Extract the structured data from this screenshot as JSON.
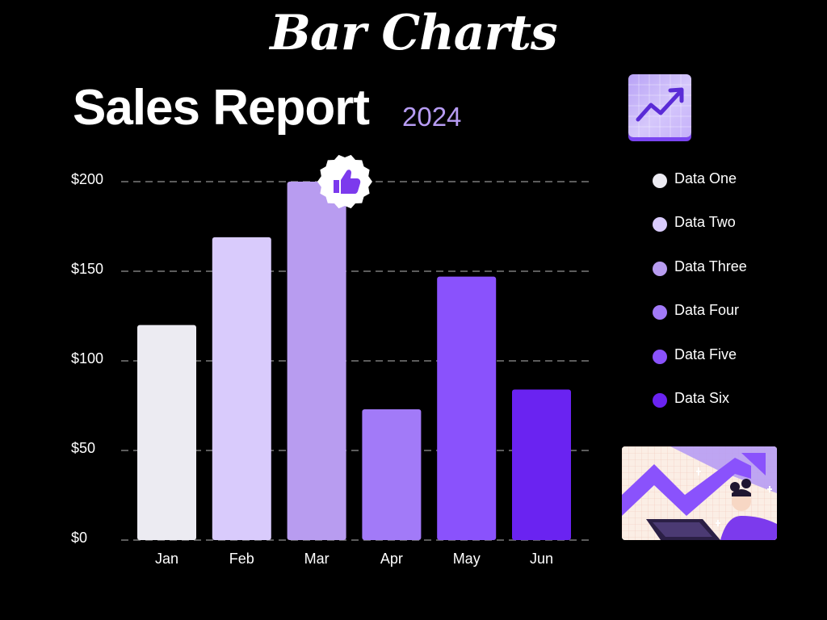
{
  "page": {
    "banner": "Bar Charts",
    "title": "Sales Report",
    "subtitle": "2024"
  },
  "icons": {
    "trend": "trend-up-icon",
    "badge": "thumbs-up-icon",
    "illustration": "woman-laptop-growth-illustration"
  },
  "chart_data": {
    "type": "bar",
    "categories": [
      "Jan",
      "Feb",
      "Mar",
      "Apr",
      "May",
      "Jun"
    ],
    "values": [
      120,
      169,
      200,
      73,
      147,
      84
    ],
    "colors": [
      "#ecebf2",
      "#d9cbfc",
      "#b89cf0",
      "#a27af8",
      "#8a52fc",
      "#6a23f1"
    ],
    "ylim": [
      0,
      200
    ],
    "yticks": [
      0,
      50,
      100,
      150,
      200
    ],
    "ytick_labels": [
      "$0",
      "$50",
      "$100",
      "$150",
      "$200"
    ],
    "grid": true,
    "grid_style": "dashed",
    "legend_position": "right",
    "title": "Sales Report",
    "subtitle": "2024"
  },
  "legend": [
    {
      "label": "Data One",
      "color": "#ecebf2"
    },
    {
      "label": "Data Two",
      "color": "#d9cbfc"
    },
    {
      "label": "Data Three",
      "color": "#b89cf0"
    },
    {
      "label": "Data Four",
      "color": "#a27af8"
    },
    {
      "label": "Data Five",
      "color": "#8a52fc"
    },
    {
      "label": "Data Six",
      "color": "#6a23f1"
    }
  ]
}
